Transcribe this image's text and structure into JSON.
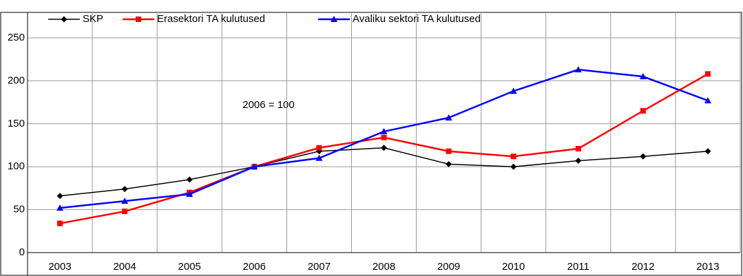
{
  "chart_data": {
    "type": "line",
    "annotation": "2006 = 100",
    "categories": [
      "2003",
      "2004",
      "2005",
      "2006",
      "2007",
      "2008",
      "2009",
      "2010",
      "2011",
      "2012",
      "2013"
    ],
    "series": [
      {
        "name": "SKP",
        "color": "#000000",
        "marker": "diamond",
        "values": [
          66,
          74,
          85,
          100,
          118,
          122,
          103,
          100,
          107,
          112,
          118
        ]
      },
      {
        "name": "Erasektori TA kulutused",
        "color": "#ff0000",
        "marker": "square",
        "values": [
          34,
          48,
          70,
          100,
          122,
          134,
          118,
          112,
          121,
          165,
          208
        ]
      },
      {
        "name": "Avaliku sektori TA kulutused",
        "color": "#0000ff",
        "marker": "triangle",
        "values": [
          52,
          60,
          68,
          100,
          110,
          141,
          157,
          188,
          213,
          205,
          177
        ]
      }
    ],
    "ylim": [
      0,
      250
    ],
    "yticks": [
      0,
      50,
      100,
      150,
      200,
      250
    ],
    "grid": true,
    "legend": "top"
  }
}
